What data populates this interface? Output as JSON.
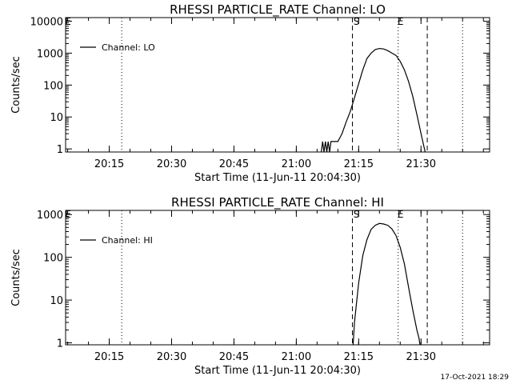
{
  "footer_timestamp": "17-Oct-2021 18:29",
  "chart_data": [
    {
      "type": "line",
      "title": "RHESSI PARTICLE_RATE Channel: LO",
      "xlabel": "Start Time (11-Jun-11 20:04:30)",
      "ylabel": "Counts/sec",
      "yscale": "log",
      "ylim": [
        0.8,
        13000
      ],
      "xlim": [
        "20:04:30",
        "21:46:30"
      ],
      "yticks": [
        "1",
        "10",
        "100",
        "1000",
        "10000"
      ],
      "xticks": [
        "20:15",
        "20:30",
        "20:45",
        "21:00",
        "21:15",
        "21:30"
      ],
      "legend": {
        "entry": "Channel: LO",
        "placement": "top-left"
      },
      "markers": {
        "start_label": "S",
        "end_label": "E",
        "left_label": "E"
      },
      "vlines": [
        {
          "time": "20:18:00",
          "style": "dotted"
        },
        {
          "time": "21:13:30",
          "style": "dashed"
        },
        {
          "time": "21:24:30",
          "style": "dotted"
        },
        {
          "time": "21:31:30",
          "style": "dashed"
        },
        {
          "time": "21:40:00",
          "style": "dotted"
        }
      ],
      "series": [
        {
          "x": [
            "21:06:00",
            "21:06:20",
            "21:06:40",
            "21:07:00",
            "21:07:20",
            "21:07:40",
            "21:08:00",
            "21:08:20",
            "21:08:40",
            "21:09:00",
            "21:09:20",
            "21:10:00",
            "21:11:00",
            "21:12:00",
            "21:13:00",
            "21:14:00",
            "21:15:00",
            "21:16:00",
            "21:17:00",
            "21:18:00",
            "21:19:00",
            "21:20:00",
            "21:21:00",
            "21:22:00",
            "21:23:00",
            "21:24:00",
            "21:25:00",
            "21:26:00",
            "21:27:00",
            "21:28:00",
            "21:29:00",
            "21:30:00",
            "21:30:45",
            "21:31:00"
          ],
          "y": [
            0.8,
            1.7,
            0.8,
            1.7,
            0.8,
            1.7,
            0.8,
            1.7,
            1.7,
            1.7,
            1.7,
            1.7,
            3,
            7,
            15,
            40,
            110,
            300,
            680,
            1000,
            1300,
            1400,
            1350,
            1200,
            1000,
            850,
            550,
            300,
            130,
            45,
            12,
            3,
            1.1,
            0.8
          ]
        }
      ]
    },
    {
      "type": "line",
      "title": "RHESSI PARTICLE_RATE Channel: HI",
      "xlabel": "Start Time (11-Jun-11 20:04:30)",
      "ylabel": "Counts/sec",
      "yscale": "log",
      "ylim": [
        0.9,
        1250
      ],
      "xlim": [
        "20:04:30",
        "21:46:30"
      ],
      "yticks": [
        "1",
        "10",
        "100",
        "1000"
      ],
      "xticks": [
        "20:15",
        "20:30",
        "20:45",
        "21:00",
        "21:15",
        "21:30"
      ],
      "legend": {
        "entry": "Channel: HI",
        "placement": "top-left"
      },
      "markers": {
        "start_label": "S",
        "end_label": "E",
        "left_label": "E"
      },
      "vlines": [
        {
          "time": "20:18:00",
          "style": "dotted"
        },
        {
          "time": "21:13:30",
          "style": "dashed"
        },
        {
          "time": "21:24:30",
          "style": "dotted"
        },
        {
          "time": "21:31:30",
          "style": "dashed"
        },
        {
          "time": "21:40:00",
          "style": "dotted"
        }
      ],
      "series": [
        {
          "x": [
            "21:13:40",
            "21:14:00",
            "21:15:00",
            "21:16:00",
            "21:17:00",
            "21:18:00",
            "21:19:00",
            "21:20:00",
            "21:21:00",
            "21:22:00",
            "21:23:00",
            "21:24:00",
            "21:25:00",
            "21:26:00",
            "21:27:00",
            "21:28:00",
            "21:29:00",
            "21:29:30",
            "21:29:45"
          ],
          "y": [
            0.9,
            3,
            25,
            110,
            260,
            450,
            560,
            620,
            600,
            560,
            460,
            320,
            170,
            70,
            20,
            6,
            2,
            1.3,
            0.9
          ]
        }
      ]
    }
  ]
}
